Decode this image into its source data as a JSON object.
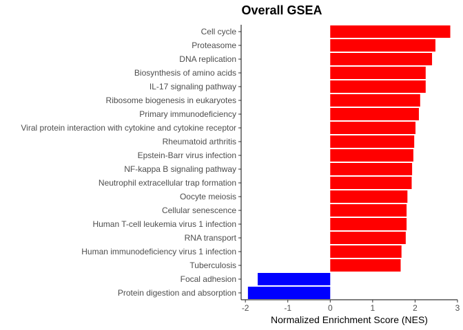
{
  "chart_data": {
    "type": "bar",
    "orientation": "horizontal",
    "title": "Overall GSEA",
    "xlabel": "Normalized Enrichment Score (NES)",
    "ylabel": "",
    "xlim": [
      -2.1,
      3.0
    ],
    "xticks": [
      -2,
      -1,
      0,
      1,
      2,
      3
    ],
    "grid": false,
    "legend": "none",
    "colors": {
      "positive": "#ff0000",
      "negative": "#0000ff"
    },
    "categories": [
      "Cell cycle",
      "Proteasome",
      "DNA replication",
      "Biosynthesis of amino acids",
      "IL-17 signaling pathway",
      "Ribosome biogenesis in eukaryotes",
      "Primary immunodeficiency",
      "Viral protein interaction with cytokine and cytokine receptor",
      "Rheumatoid arthritis",
      "Epstein-Barr virus infection",
      "NF-kappa B signaling pathway",
      "Neutrophil extracellular trap formation",
      "Oocyte meiosis",
      "Cellular senescence",
      "Human T-cell leukemia virus 1 infection",
      "RNA transport",
      "Human immunodeficiency virus 1 infection",
      "Tuberculosis",
      "Focal adhesion",
      "Protein digestion and absorption"
    ],
    "values": [
      2.83,
      2.48,
      2.4,
      2.25,
      2.25,
      2.12,
      2.09,
      2.01,
      1.98,
      1.96,
      1.93,
      1.92,
      1.82,
      1.8,
      1.8,
      1.78,
      1.68,
      1.66,
      -1.71,
      -1.94
    ]
  }
}
